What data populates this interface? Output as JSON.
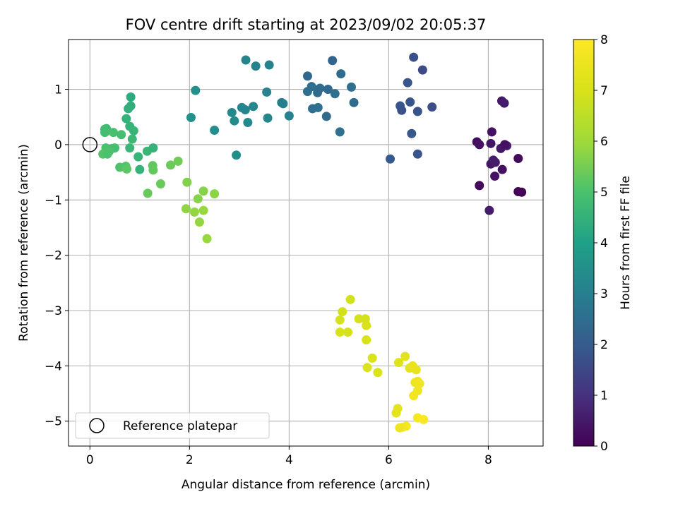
{
  "chart_data": {
    "type": "scatter",
    "title": "FOV centre drift starting at 2023/09/02 20:05:37",
    "xlabel": "Angular distance from reference (arcmin)",
    "ylabel": "Rotation from reference (arcmin)",
    "xlim": [
      -0.43,
      9.1
    ],
    "ylim": [
      -5.45,
      1.9
    ],
    "xticks": [
      0,
      2,
      4,
      6,
      8
    ],
    "yticks": [
      -5,
      -4,
      -3,
      -2,
      -1,
      0,
      1
    ],
    "xtick_labels": [
      "0",
      "2",
      "4",
      "6",
      "8"
    ],
    "ytick_labels": [
      "−5",
      "−4",
      "−3",
      "−2",
      "−1",
      "0",
      "1"
    ],
    "grid": true,
    "colormap": "viridis",
    "colorbar": {
      "label": "Hours from first FF file",
      "range": [
        0,
        8
      ],
      "ticks": [
        0,
        1,
        2,
        3,
        4,
        5,
        6,
        7,
        8
      ],
      "tick_labels": [
        "0",
        "1",
        "2",
        "3",
        "4",
        "5",
        "6",
        "7",
        "8"
      ]
    },
    "reference_point": {
      "x": 0,
      "y": 0
    },
    "legend": {
      "position": "lower-left",
      "entries": [
        "Reference platepar"
      ]
    },
    "points": [
      {
        "x": 7.77,
        "y": 0.05,
        "c": 0.25
      },
      {
        "x": 7.82,
        "y": 0.0,
        "c": 0.3
      },
      {
        "x": 8.07,
        "y": 0.23,
        "c": 0.35
      },
      {
        "x": 8.05,
        "y": 0.02,
        "c": 0.4
      },
      {
        "x": 8.25,
        "y": -0.07,
        "c": 0.45
      },
      {
        "x": 8.37,
        "y": -0.02,
        "c": 0.5
      },
      {
        "x": 8.33,
        "y": 0.0,
        "c": 0.3
      },
      {
        "x": 8.6,
        "y": -0.25,
        "c": 0.2
      },
      {
        "x": 8.05,
        "y": -0.35,
        "c": 0.45
      },
      {
        "x": 8.1,
        "y": -0.28,
        "c": 0.5
      },
      {
        "x": 8.14,
        "y": -0.32,
        "c": 0.55
      },
      {
        "x": 8.28,
        "y": -0.45,
        "c": 0.3
      },
      {
        "x": 8.13,
        "y": -0.57,
        "c": 0.35
      },
      {
        "x": 7.82,
        "y": -0.74,
        "c": 0.2
      },
      {
        "x": 8.02,
        "y": -1.19,
        "c": 0.55
      },
      {
        "x": 8.6,
        "y": -0.85,
        "c": 0.1
      },
      {
        "x": 8.67,
        "y": -0.86,
        "c": 0.05
      },
      {
        "x": 8.27,
        "y": 0.79,
        "c": 0.5
      },
      {
        "x": 8.32,
        "y": 0.75,
        "c": 0.55
      },
      {
        "x": 6.5,
        "y": 1.58,
        "c": 1.7
      },
      {
        "x": 6.68,
        "y": 1.35,
        "c": 1.6
      },
      {
        "x": 6.38,
        "y": 1.12,
        "c": 1.85
      },
      {
        "x": 6.43,
        "y": 0.77,
        "c": 1.8
      },
      {
        "x": 6.23,
        "y": 0.7,
        "c": 1.9
      },
      {
        "x": 6.26,
        "y": 0.62,
        "c": 1.75
      },
      {
        "x": 6.58,
        "y": 0.6,
        "c": 1.8
      },
      {
        "x": 6.87,
        "y": 0.68,
        "c": 1.65
      },
      {
        "x": 6.46,
        "y": 0.2,
        "c": 1.9
      },
      {
        "x": 6.58,
        "y": -0.17,
        "c": 1.85
      },
      {
        "x": 6.03,
        "y": -0.26,
        "c": 1.95
      },
      {
        "x": 4.87,
        "y": 1.52,
        "c": 2.25
      },
      {
        "x": 5.04,
        "y": 1.28,
        "c": 2.4
      },
      {
        "x": 4.37,
        "y": 1.24,
        "c": 2.3
      },
      {
        "x": 4.45,
        "y": 1.05,
        "c": 2.5
      },
      {
        "x": 4.62,
        "y": 1.02,
        "c": 2.45
      },
      {
        "x": 4.37,
        "y": 0.96,
        "c": 2.55
      },
      {
        "x": 4.57,
        "y": 0.94,
        "c": 2.4
      },
      {
        "x": 4.78,
        "y": 1.0,
        "c": 2.35
      },
      {
        "x": 4.92,
        "y": 0.92,
        "c": 2.6
      },
      {
        "x": 5.25,
        "y": 1.04,
        "c": 2.55
      },
      {
        "x": 5.3,
        "y": 0.76,
        "c": 2.45
      },
      {
        "x": 4.58,
        "y": 0.67,
        "c": 2.6
      },
      {
        "x": 4.47,
        "y": 0.65,
        "c": 2.5
      },
      {
        "x": 4.75,
        "y": 0.51,
        "c": 2.4
      },
      {
        "x": 5.02,
        "y": 0.23,
        "c": 2.6
      },
      {
        "x": 3.13,
        "y": 1.53,
        "c": 3.15
      },
      {
        "x": 3.33,
        "y": 1.42,
        "c": 3.05
      },
      {
        "x": 3.6,
        "y": 1.44,
        "c": 3.1
      },
      {
        "x": 3.55,
        "y": 0.95,
        "c": 3.05
      },
      {
        "x": 3.85,
        "y": 0.76,
        "c": 2.95
      },
      {
        "x": 3.88,
        "y": 0.74,
        "c": 3.0
      },
      {
        "x": 3.05,
        "y": 0.67,
        "c": 3.2
      },
      {
        "x": 3.12,
        "y": 0.63,
        "c": 3.15
      },
      {
        "x": 3.28,
        "y": 0.69,
        "c": 3.25
      },
      {
        "x": 2.85,
        "y": 0.58,
        "c": 3.3
      },
      {
        "x": 3.57,
        "y": 0.48,
        "c": 3.2
      },
      {
        "x": 4.0,
        "y": 0.52,
        "c": 3.05
      },
      {
        "x": 2.9,
        "y": 0.43,
        "c": 3.35
      },
      {
        "x": 3.17,
        "y": 0.4,
        "c": 3.25
      },
      {
        "x": 2.5,
        "y": 0.26,
        "c": 3.45
      },
      {
        "x": 2.94,
        "y": -0.19,
        "c": 3.4
      },
      {
        "x": 2.03,
        "y": 0.49,
        "c": 3.55
      },
      {
        "x": 2.12,
        "y": 0.98,
        "c": 3.5
      },
      {
        "x": 0.82,
        "y": 0.86,
        "c": 4.3
      },
      {
        "x": 0.82,
        "y": 0.7,
        "c": 4.4
      },
      {
        "x": 0.77,
        "y": 0.65,
        "c": 4.45
      },
      {
        "x": 0.73,
        "y": 0.47,
        "c": 4.5
      },
      {
        "x": 0.8,
        "y": 0.33,
        "c": 4.55
      },
      {
        "x": 0.88,
        "y": 0.25,
        "c": 4.6
      },
      {
        "x": 0.85,
        "y": 0.1,
        "c": 4.7
      },
      {
        "x": 0.8,
        "y": -0.06,
        "c": 4.65
      },
      {
        "x": 0.97,
        "y": -0.22,
        "c": 4.6
      },
      {
        "x": 1.15,
        "y": -0.12,
        "c": 4.65
      },
      {
        "x": 1.27,
        "y": -0.06,
        "c": 4.55
      },
      {
        "x": 1.0,
        "y": -0.45,
        "c": 4.55
      },
      {
        "x": 0.3,
        "y": 0.28,
        "c": 4.9
      },
      {
        "x": 0.33,
        "y": 0.29,
        "c": 4.8
      },
      {
        "x": 0.3,
        "y": 0.22,
        "c": 4.85
      },
      {
        "x": 0.47,
        "y": 0.22,
        "c": 4.95
      },
      {
        "x": 0.63,
        "y": 0.18,
        "c": 4.9
      },
      {
        "x": 0.5,
        "y": -0.06,
        "c": 4.95
      },
      {
        "x": 0.32,
        "y": -0.06,
        "c": 5.0
      },
      {
        "x": 0.45,
        "y": -0.07,
        "c": 4.9
      },
      {
        "x": 0.38,
        "y": -0.13,
        "c": 5.05
      },
      {
        "x": 0.26,
        "y": -0.17,
        "c": 5.1
      },
      {
        "x": 0.35,
        "y": -0.17,
        "c": 5.0
      },
      {
        "x": 0.6,
        "y": -0.41,
        "c": 5.05
      },
      {
        "x": 0.72,
        "y": -0.39,
        "c": 5.1
      },
      {
        "x": 0.74,
        "y": -0.44,
        "c": 5.2
      },
      {
        "x": 1.26,
        "y": -0.38,
        "c": 5.25
      },
      {
        "x": 1.27,
        "y": -0.46,
        "c": 5.3
      },
      {
        "x": 1.16,
        "y": -0.88,
        "c": 5.35
      },
      {
        "x": 1.42,
        "y": -0.71,
        "c": 5.35
      },
      {
        "x": 1.62,
        "y": -0.37,
        "c": 5.4
      },
      {
        "x": 1.77,
        "y": -0.3,
        "c": 5.45
      },
      {
        "x": 1.95,
        "y": -0.68,
        "c": 5.65
      },
      {
        "x": 2.28,
        "y": -0.84,
        "c": 5.7
      },
      {
        "x": 2.5,
        "y": -0.89,
        "c": 5.75
      },
      {
        "x": 2.17,
        "y": -0.98,
        "c": 5.7
      },
      {
        "x": 1.93,
        "y": -1.16,
        "c": 5.8
      },
      {
        "x": 2.1,
        "y": -1.22,
        "c": 5.85
      },
      {
        "x": 2.28,
        "y": -1.19,
        "c": 5.9
      },
      {
        "x": 2.2,
        "y": -1.4,
        "c": 5.85
      },
      {
        "x": 2.35,
        "y": -1.7,
        "c": 5.9
      },
      {
        "x": 5.23,
        "y": -2.8,
        "c": 6.85
      },
      {
        "x": 5.07,
        "y": -3.02,
        "c": 6.9
      },
      {
        "x": 5.02,
        "y": -3.17,
        "c": 6.95
      },
      {
        "x": 5.4,
        "y": -3.15,
        "c": 6.95
      },
      {
        "x": 5.53,
        "y": -3.15,
        "c": 6.9
      },
      {
        "x": 5.55,
        "y": -3.27,
        "c": 7.0
      },
      {
        "x": 5.02,
        "y": -3.39,
        "c": 7.0
      },
      {
        "x": 5.18,
        "y": -3.39,
        "c": 6.95
      },
      {
        "x": 5.55,
        "y": -3.53,
        "c": 7.05
      },
      {
        "x": 5.67,
        "y": -3.86,
        "c": 7.05
      },
      {
        "x": 5.57,
        "y": -4.03,
        "c": 7.1
      },
      {
        "x": 5.78,
        "y": -4.12,
        "c": 7.05
      },
      {
        "x": 6.2,
        "y": -3.94,
        "c": 7.2
      },
      {
        "x": 6.33,
        "y": -3.83,
        "c": 7.25
      },
      {
        "x": 6.42,
        "y": -4.04,
        "c": 7.4
      },
      {
        "x": 6.48,
        "y": -4.0,
        "c": 7.45
      },
      {
        "x": 6.55,
        "y": -4.07,
        "c": 7.4
      },
      {
        "x": 6.53,
        "y": -4.3,
        "c": 7.6
      },
      {
        "x": 6.58,
        "y": -4.28,
        "c": 7.6
      },
      {
        "x": 6.62,
        "y": -4.32,
        "c": 7.65
      },
      {
        "x": 6.58,
        "y": -4.45,
        "c": 7.65
      },
      {
        "x": 6.5,
        "y": -4.54,
        "c": 7.7
      },
      {
        "x": 6.18,
        "y": -4.77,
        "c": 7.3
      },
      {
        "x": 6.15,
        "y": -4.85,
        "c": 7.3
      },
      {
        "x": 6.58,
        "y": -4.94,
        "c": 7.85
      },
      {
        "x": 6.7,
        "y": -4.97,
        "c": 7.9
      },
      {
        "x": 6.35,
        "y": -5.09,
        "c": 7.75
      },
      {
        "x": 6.27,
        "y": -5.11,
        "c": 7.7
      },
      {
        "x": 6.22,
        "y": -5.12,
        "c": 7.6
      }
    ]
  }
}
